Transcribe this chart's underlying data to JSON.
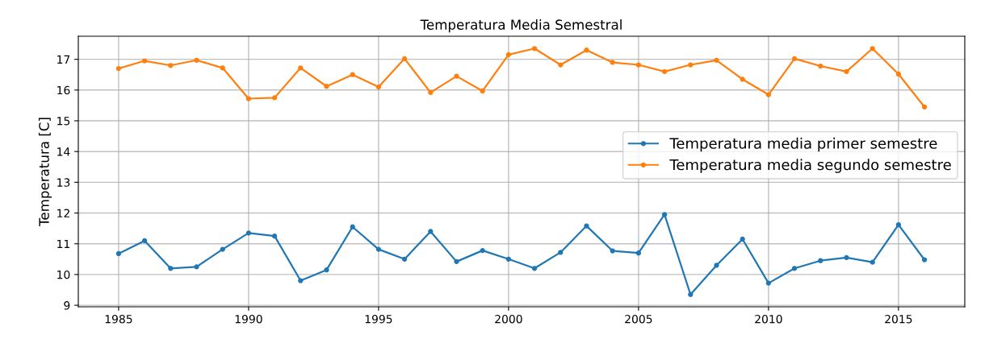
{
  "chart_data": {
    "type": "line",
    "title": "Temperatura Media Semestral",
    "ylabel": "Temperatura [C]",
    "x": [
      1985,
      1986,
      1987,
      1988,
      1989,
      1990,
      1991,
      1992,
      1993,
      1994,
      1995,
      1996,
      1997,
      1998,
      1999,
      2000,
      2001,
      2002,
      2003,
      2004,
      2005,
      2006,
      2007,
      2008,
      2009,
      2010,
      2011,
      2012,
      2013,
      2014,
      2015,
      2016
    ],
    "series": [
      {
        "name": "Temperatura media primer semestre",
        "color": "#1f77b4",
        "values": [
          10.68,
          11.1,
          10.2,
          10.25,
          10.82,
          11.35,
          11.25,
          9.8,
          10.15,
          11.55,
          10.82,
          10.5,
          11.4,
          10.42,
          10.78,
          10.5,
          10.2,
          10.72,
          11.58,
          10.77,
          10.7,
          11.95,
          9.35,
          10.3,
          11.15,
          9.72,
          10.2,
          10.45,
          10.55,
          10.4,
          11.62,
          10.48
        ]
      },
      {
        "name": "Temperatura media segundo semestre",
        "color": "#ff7f0e",
        "values": [
          16.7,
          16.95,
          16.8,
          16.97,
          16.72,
          15.72,
          15.75,
          16.72,
          16.12,
          16.5,
          16.1,
          17.02,
          15.92,
          16.45,
          15.97,
          17.15,
          17.35,
          16.82,
          17.3,
          16.9,
          16.82,
          16.6,
          16.82,
          16.97,
          16.35,
          15.85,
          17.02,
          16.78,
          16.6,
          17.35,
          16.52,
          15.45
        ]
      }
    ],
    "xlim": [
      1983.45,
      2017.55
    ],
    "xticks": [
      1985,
      1990,
      1995,
      2000,
      2005,
      2010,
      2015
    ],
    "ylim": [
      8.95,
      17.75
    ],
    "yticks": [
      9,
      10,
      11,
      12,
      13,
      14,
      15,
      16,
      17
    ],
    "grid": true,
    "legend": "center right",
    "marker": "circle",
    "line_style": "solid"
  }
}
